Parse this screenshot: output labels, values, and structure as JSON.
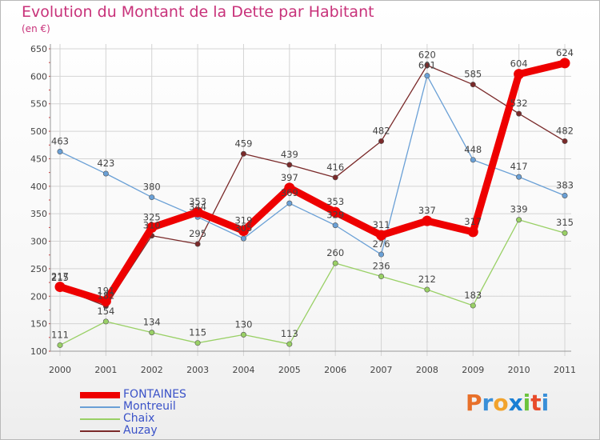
{
  "title": "Evolution du Montant de la Dette par Habitant",
  "subtitle": "(en €)",
  "logo": {
    "text": "Proxiti",
    "letter_colors": [
      "#e8702a",
      "#3a8fd8",
      "#f2a32c",
      "#1a7fd4",
      "#6cc43c",
      "#e84a2a",
      "#3a8fd8"
    ]
  },
  "chart_data": {
    "type": "line",
    "title": "Evolution du Montant de la Dette par Habitant",
    "subtitle": "(en €)",
    "x": [
      "2000",
      "2001",
      "2002",
      "2003",
      "2004",
      "2005",
      "2006",
      "2007",
      "2008",
      "2009",
      "2010",
      "2011"
    ],
    "ylim": [
      100,
      650
    ],
    "yticks": [
      100,
      150,
      200,
      250,
      300,
      350,
      400,
      450,
      500,
      550,
      600,
      650
    ],
    "grid": true,
    "legend_position": "bottom-left",
    "series": [
      {
        "name": "Auzay",
        "color": "#7a2a2a",
        "values": [
          215,
          182,
          310,
          295,
          459,
          439,
          416,
          482,
          620,
          585,
          532,
          482
        ],
        "labels": [
          "215",
          "182",
          "310",
          "295",
          "459",
          "439",
          "416",
          "482",
          "620",
          "585",
          "532",
          "482"
        ]
      },
      {
        "name": "Chaix",
        "color": "#99d065",
        "values": [
          111,
          154,
          134,
          115,
          130,
          113,
          260,
          236,
          212,
          183,
          339,
          315
        ],
        "labels": [
          "111",
          "154",
          "134",
          "115",
          "130",
          "113",
          "260",
          "236",
          "212",
          "183",
          "339",
          "315"
        ]
      },
      {
        "name": "Montreuil",
        "color": "#6aa0d6",
        "values": [
          463,
          423,
          380,
          344,
          305,
          369,
          329,
          276,
          601,
          448,
          417,
          383
        ],
        "labels": [
          "463",
          "423",
          "380",
          "344",
          "305",
          "369",
          "329",
          "276",
          "601",
          "448",
          "417",
          "383"
        ]
      },
      {
        "name": "FONTAINES",
        "color": "#ee0000",
        "values": [
          217,
          191,
          325,
          353,
          319,
          397,
          353,
          311,
          337,
          317,
          604,
          624
        ],
        "labels": [
          "217",
          "191",
          "325",
          "353",
          "319",
          "397",
          "353",
          "311",
          "337",
          "317",
          "604",
          "624"
        ]
      }
    ],
    "legend": [
      "FONTAINES",
      "Montreuil",
      "Chaix",
      "Auzay"
    ]
  }
}
